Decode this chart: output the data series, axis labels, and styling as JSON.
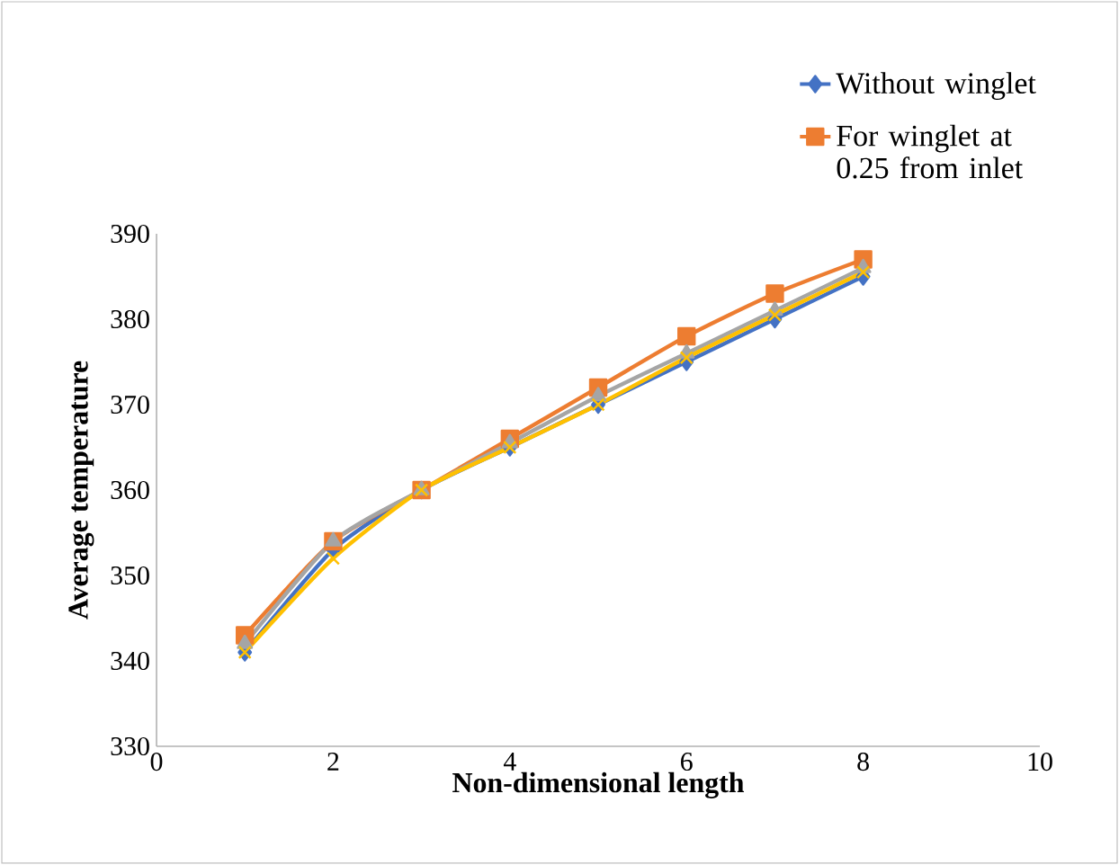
{
  "chart_data": {
    "type": "line",
    "xlabel": "Non-dimensional length",
    "ylabel": "Average temperature",
    "x": [
      1,
      2,
      3,
      4,
      5,
      6,
      7,
      8
    ],
    "series": [
      {
        "name": "Without winglet",
        "color": "#4472c4",
        "marker": "diamond",
        "values": [
          341,
          353,
          360,
          365,
          370,
          375,
          380,
          385
        ]
      },
      {
        "name": "For winglet at 0.25 from inlet",
        "color": "#ed7d31",
        "marker": "square",
        "values": [
          343,
          354,
          360,
          366,
          372,
          378,
          383,
          387
        ]
      },
      {
        "color": "#a5a5a5",
        "marker": "triangle",
        "values": [
          342,
          354,
          360,
          365.5,
          371,
          376,
          381,
          386
        ]
      },
      {
        "color": "#ffc000",
        "marker": "cross",
        "values": [
          341,
          352,
          360,
          365,
          370,
          375.5,
          380.5,
          385.5
        ]
      }
    ],
    "xlim": [
      0,
      10
    ],
    "xticks": [
      0,
      2,
      4,
      6,
      8,
      10
    ],
    "ylim": [
      330,
      390
    ],
    "yticks": [
      330,
      340,
      350,
      360,
      370,
      380,
      390
    ],
    "grid": false,
    "legend": "top right",
    "line_style": "solid"
  }
}
